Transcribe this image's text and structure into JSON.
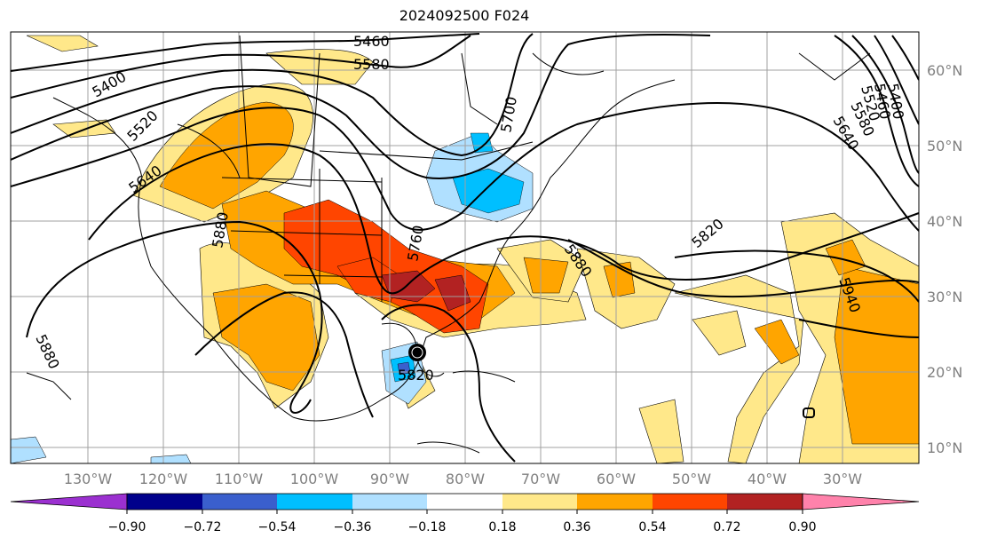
{
  "title": "2024092500 F024",
  "lat_labels": [
    "60°N",
    "50°N",
    "40°N",
    "30°N",
    "20°N",
    "10°N"
  ],
  "lon_labels": [
    "130°W",
    "120°W",
    "110°W",
    "100°W",
    "90°W",
    "80°W",
    "70°W",
    "60°W",
    "50°W",
    "40°W",
    "30°W"
  ],
  "contour_labels": [
    "5460",
    "5580",
    "5400",
    "5520",
    "5640",
    "5880",
    "5700",
    "5400",
    "5460",
    "5520",
    "5580",
    "5640",
    "5820",
    "5880",
    "5760",
    "5940",
    "5880",
    "5820"
  ],
  "colorbar": {
    "ticks": [
      "−0.90",
      "−0.72",
      "−0.54",
      "−0.36",
      "−0.18",
      "0.18",
      "0.36",
      "0.54",
      "0.72",
      "0.90"
    ],
    "colors": [
      "#9b30d0",
      "#00008b",
      "#3a5fcd",
      "#00bfff",
      "#b0e0ff",
      "#ffffff",
      "#ffe88a",
      "#ffa500",
      "#ff4500",
      "#b22222",
      "#ff82ab"
    ]
  },
  "colors": {
    "contour": "#000000",
    "grid": "#a0a0a0",
    "coast": "#000000"
  },
  "marker": {
    "type": "storm-center",
    "color": "#000000"
  }
}
